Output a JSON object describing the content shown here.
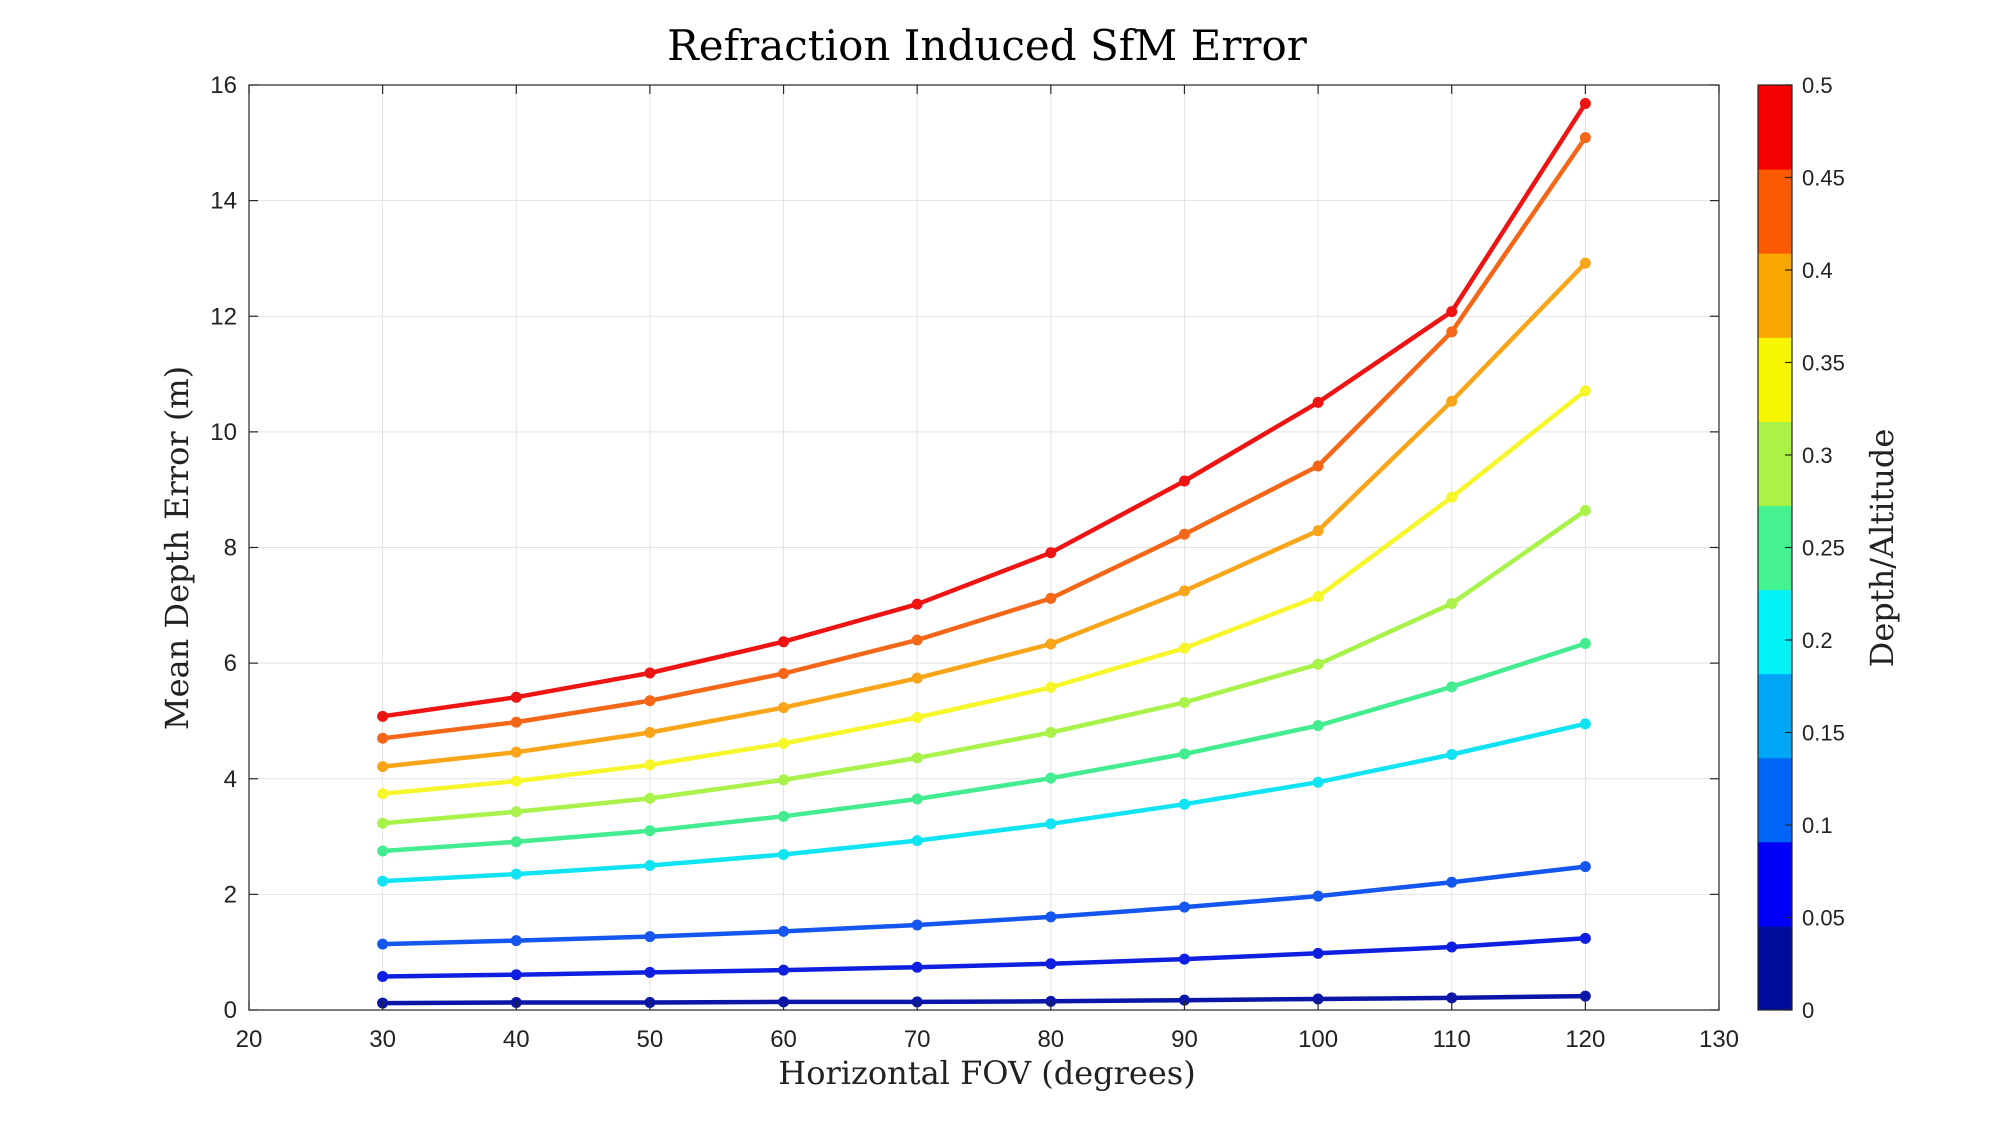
{
  "chart_data": {
    "type": "line",
    "title": "Refraction Induced SfM Error",
    "xlabel": "Horizontal FOV (degrees)",
    "ylabel": "Mean Depth Error (m)",
    "xlim": [
      20,
      130
    ],
    "ylim": [
      0,
      16
    ],
    "xticks": [
      20,
      30,
      40,
      50,
      60,
      70,
      80,
      90,
      100,
      110,
      120,
      130
    ],
    "yticks": [
      0,
      2,
      4,
      6,
      8,
      10,
      12,
      14,
      16
    ],
    "grid": true,
    "x": [
      30,
      40,
      50,
      60,
      70,
      80,
      90,
      100,
      110,
      120
    ],
    "series": [
      {
        "depth_altitude": 0.05,
        "color": "#0a16a8",
        "values": [
          0.12,
          0.13,
          0.13,
          0.14,
          0.14,
          0.15,
          0.17,
          0.19,
          0.21,
          0.24
        ]
      },
      {
        "depth_altitude": 0.1,
        "color": "#0f1fe0",
        "values": [
          0.58,
          0.61,
          0.65,
          0.69,
          0.74,
          0.8,
          0.88,
          0.98,
          1.09,
          1.24
        ]
      },
      {
        "depth_altitude": 0.15,
        "color": "#1456ee",
        "values": [
          1.14,
          1.2,
          1.27,
          1.36,
          1.47,
          1.61,
          1.78,
          1.97,
          2.21,
          2.48
        ]
      },
      {
        "depth_altitude": 0.2,
        "color": "#10e3f1",
        "values": [
          2.23,
          2.35,
          2.5,
          2.69,
          2.93,
          3.22,
          3.56,
          3.94,
          4.42,
          4.95
        ]
      },
      {
        "depth_altitude": 0.25,
        "color": "#43ec8f",
        "values": [
          2.75,
          2.91,
          3.1,
          3.35,
          3.65,
          4.01,
          4.43,
          4.92,
          5.59,
          6.34
        ]
      },
      {
        "depth_altitude": 0.3,
        "color": "#a8f24a",
        "values": [
          3.23,
          3.43,
          3.66,
          3.98,
          4.36,
          4.8,
          5.32,
          5.98,
          7.03,
          8.64
        ]
      },
      {
        "depth_altitude": 0.35,
        "color": "#f6f62a",
        "values": [
          3.74,
          3.96,
          4.24,
          4.61,
          5.06,
          5.58,
          6.26,
          7.15,
          8.87,
          10.71
        ]
      },
      {
        "depth_altitude": 0.4,
        "color": "#f9a51a",
        "values": [
          4.21,
          4.46,
          4.8,
          5.23,
          5.74,
          6.33,
          7.25,
          8.29,
          10.53,
          12.92
        ]
      },
      {
        "depth_altitude": 0.45,
        "color": "#f46718",
        "values": [
          4.7,
          4.98,
          5.35,
          5.82,
          6.4,
          7.12,
          8.23,
          9.41,
          11.73,
          15.09
        ]
      },
      {
        "depth_altitude": 0.5,
        "color": "#ee1414",
        "values": [
          5.08,
          5.41,
          5.83,
          6.37,
          7.02,
          7.91,
          9.15,
          10.51,
          12.08,
          15.68
        ]
      }
    ],
    "colorbar": {
      "label": "Depth/Altitude",
      "range": [
        0,
        0.5
      ],
      "ticks": [
        "0",
        "0.05",
        "0.1",
        "0.15",
        "0.2",
        "0.25",
        "0.3",
        "0.35",
        "0.4",
        "0.45",
        "0.5"
      ],
      "band_colors": [
        "#000c9c",
        "#0000f8",
        "#0064f6",
        "#00a6f6",
        "#00f2f6",
        "#44f290",
        "#aaf248",
        "#f6f600",
        "#faa600",
        "#fa5a00",
        "#f50000"
      ]
    }
  }
}
